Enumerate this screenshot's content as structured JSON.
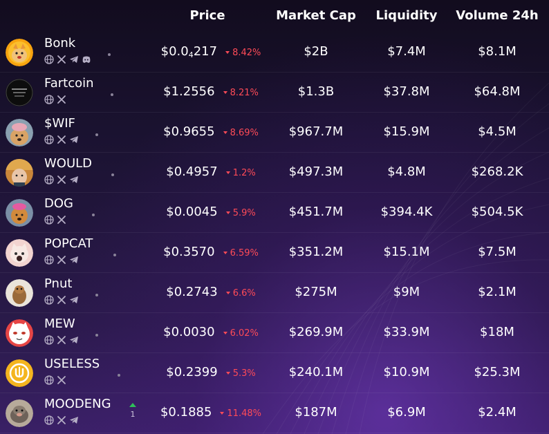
{
  "header": {
    "price": "Price",
    "market_cap": "Market Cap",
    "liquidity": "Liquidity",
    "volume": "Volume 24h"
  },
  "rows": [
    {
      "name": "Bonk",
      "price_main": "$0.0",
      "price_sub": "4",
      "price_tail": "217",
      "change": "8.42%",
      "market_cap": "$2B",
      "liquidity": "$7.4M",
      "volume": "$8.1M",
      "socials": [
        "globe-icon",
        "x-icon",
        "telegram-icon",
        "discord-icon"
      ]
    },
    {
      "name": "Fartcoin",
      "price_main": "$1.2556",
      "change": "8.21%",
      "market_cap": "$1.3B",
      "liquidity": "$37.8M",
      "volume": "$64.8M",
      "socials": [
        "globe-icon",
        "x-icon"
      ]
    },
    {
      "name": "$WIF",
      "price_main": "$0.9655",
      "change": "8.69%",
      "market_cap": "$967.7M",
      "liquidity": "$15.9M",
      "volume": "$4.5M",
      "socials": [
        "globe-icon",
        "x-icon",
        "telegram-icon"
      ]
    },
    {
      "name": "WOULD",
      "price_main": "$0.4957",
      "change": "1.2%",
      "market_cap": "$497.3M",
      "liquidity": "$4.8M",
      "volume": "$268.2K",
      "socials": [
        "globe-icon",
        "x-icon",
        "telegram-icon"
      ]
    },
    {
      "name": "DOG",
      "price_main": "$0.0045",
      "change": "5.9%",
      "market_cap": "$451.7M",
      "liquidity": "$394.4K",
      "volume": "$504.5K",
      "socials": [
        "globe-icon",
        "x-icon"
      ]
    },
    {
      "name": "POPCAT",
      "price_main": "$0.3570",
      "change": "6.59%",
      "market_cap": "$351.2M",
      "liquidity": "$15.1M",
      "volume": "$7.5M",
      "socials": [
        "globe-icon",
        "x-icon",
        "telegram-icon"
      ]
    },
    {
      "name": "Pnut",
      "price_main": "$0.2743",
      "change": "6.6%",
      "market_cap": "$275M",
      "liquidity": "$9M",
      "volume": "$2.1M",
      "socials": [
        "globe-icon",
        "x-icon",
        "telegram-icon"
      ]
    },
    {
      "name": "MEW",
      "price_main": "$0.0030",
      "change": "6.02%",
      "market_cap": "$269.9M",
      "liquidity": "$33.9M",
      "volume": "$18M",
      "socials": [
        "globe-icon",
        "x-icon",
        "telegram-icon"
      ]
    },
    {
      "name": "USELESS",
      "price_main": "$0.2399",
      "change": "5.3%",
      "market_cap": "$240.1M",
      "liquidity": "$10.9M",
      "volume": "$25.3M",
      "socials": [
        "globe-icon",
        "x-icon"
      ]
    },
    {
      "name": "MOODENG",
      "price_main": "$0.1885",
      "change": "11.48%",
      "market_cap": "$187M",
      "liquidity": "$6.9M",
      "volume": "$2.4M",
      "rank_change": "1",
      "socials": [
        "globe-icon",
        "x-icon",
        "telegram-icon"
      ]
    }
  ],
  "colors": {
    "negative": "#ff4b57",
    "positive": "#2fbf5a",
    "text": "#ffffff"
  }
}
